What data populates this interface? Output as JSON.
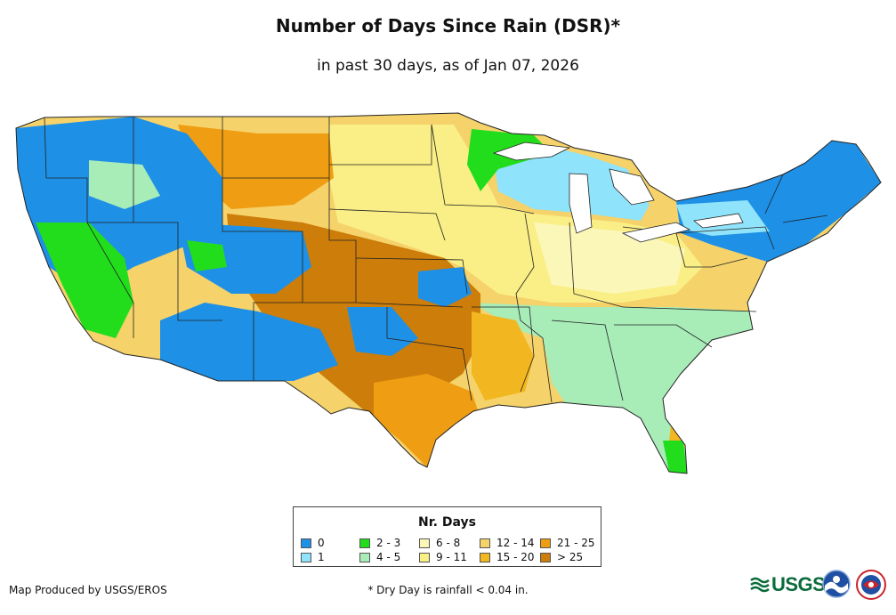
{
  "title": "Number of Days Since Rain (DSR)*",
  "subtitle": "in past 30 days, as of Jan 07, 2026",
  "legend": {
    "title": "Nr. Days",
    "items": [
      {
        "label": "0",
        "color": "#1e90e6"
      },
      {
        "label": "1",
        "color": "#8fe3fa"
      },
      {
        "label": "2 - 3",
        "color": "#22dd1c"
      },
      {
        "label": "4 - 5",
        "color": "#a8ecb8"
      },
      {
        "label": "6 - 8",
        "color": "#fbf7b9"
      },
      {
        "label": "9 - 11",
        "color": "#faee86"
      },
      {
        "label": "12 - 14",
        "color": "#f5d26a"
      },
      {
        "label": "15 - 20",
        "color": "#f2b720"
      },
      {
        "label": "21 - 25",
        "color": "#ef9d12"
      },
      {
        "label": "> 25",
        "color": "#cc7d0a"
      }
    ]
  },
  "credit": "Map Produced by USGS/EROS",
  "footnote": "* Dry Day is rainfall < 0.04 in.",
  "logos": {
    "usgs_text": "USGS"
  }
}
